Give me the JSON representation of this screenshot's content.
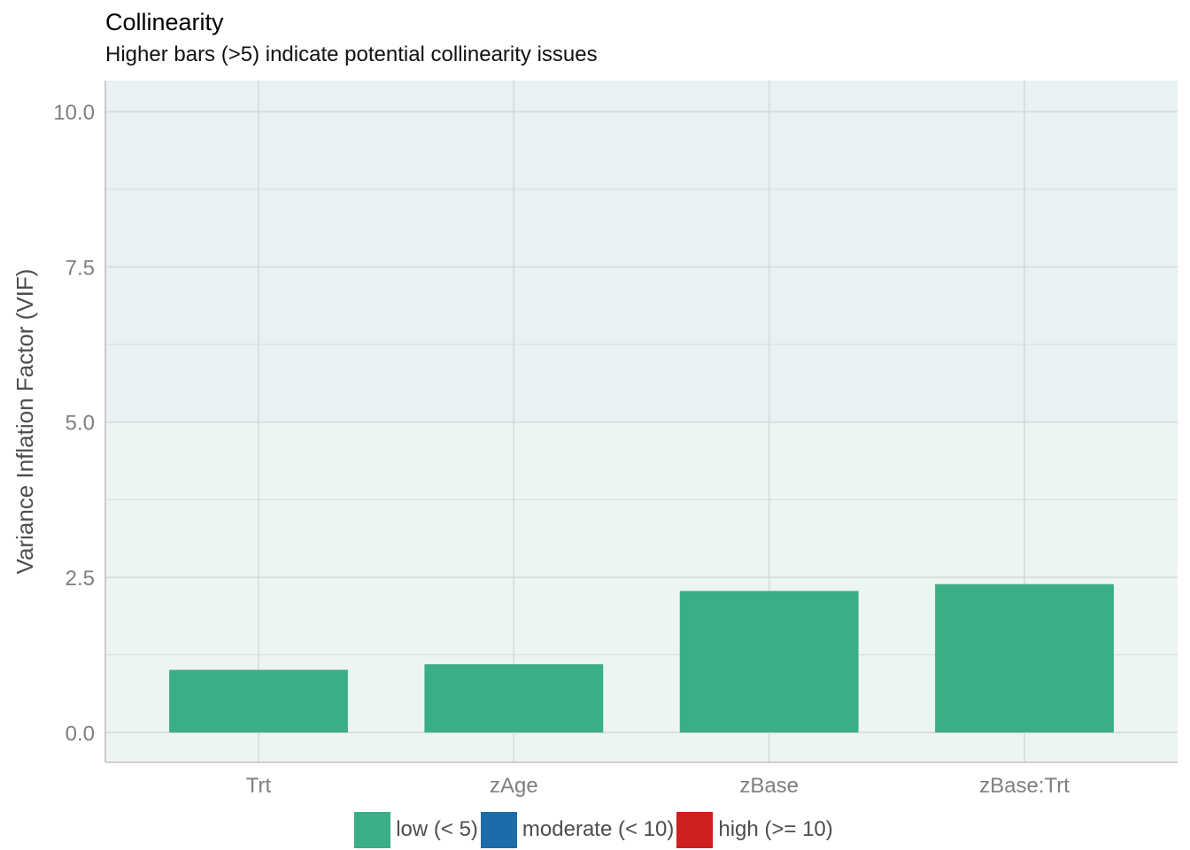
{
  "header": {
    "title": "Collinearity",
    "subtitle": "Higher bars (>5) indicate potential collinearity issues"
  },
  "colors": {
    "low": "#3aaf85",
    "moderate": "#1b6ca8",
    "high": "#cd201f",
    "band_low": "#edf5f2",
    "band_moderate": "#e9f1f4",
    "grid": "#d5dadd",
    "axis_text": "#7f7f7f",
    "axis_line": "#c0c0c0"
  },
  "chart_data": {
    "type": "bar",
    "title": "Collinearity",
    "subtitle": "Higher bars (>5) indicate potential collinearity issues",
    "xlabel": "",
    "ylabel": "Variance Inflation Factor (VIF)",
    "categories": [
      "Trt",
      "zAge",
      "zBase",
      "zBase:Trt"
    ],
    "values": [
      1.01,
      1.1,
      2.28,
      2.39
    ],
    "bar_groups": [
      "low",
      "low",
      "low",
      "low"
    ],
    "ylim": [
      -0.48,
      10.5
    ],
    "yticks": [
      0,
      2.5,
      5,
      7.5,
      10
    ],
    "ytick_labels": [
      "0.0",
      "2.5",
      "5.0",
      "7.5",
      "10.0"
    ],
    "minor_yticks": [
      1.25,
      3.75,
      6.25,
      8.75
    ],
    "background_bands": [
      {
        "from": 0,
        "to": 5,
        "group": "low"
      },
      {
        "from": 5,
        "to": 10,
        "group": "moderate"
      }
    ],
    "grid": true,
    "legend": {
      "position": "bottom",
      "entries": [
        {
          "key": "low",
          "label": "low (< 5)"
        },
        {
          "key": "moderate",
          "label": "moderate (< 10)"
        },
        {
          "key": "high",
          "label": "high (>= 10)"
        }
      ]
    }
  }
}
